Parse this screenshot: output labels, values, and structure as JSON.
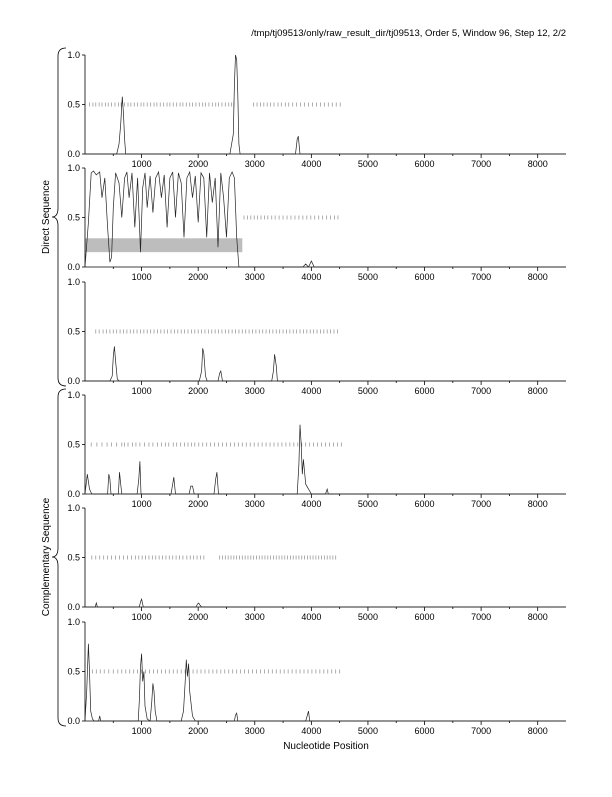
{
  "header": {
    "title": "/tmp/tj09513/only/raw_result_dir/tj09513, Order 5, Window 96, Step 12, 2/2"
  },
  "group_labels": {
    "direct": "Direct Sequence",
    "complementary": "Complementary Sequence"
  },
  "xlabel": "Nucleotide Position",
  "chart_data": [
    {
      "type": "line",
      "strand": "direct",
      "frame": 1,
      "xlim": [
        0,
        8500
      ],
      "ylim": [
        0,
        1.0
      ],
      "xticks": [
        1000,
        2000,
        3000,
        4000,
        5000,
        6000,
        7000,
        8000
      ],
      "yticks": [
        0.0,
        0.5,
        1.0
      ],
      "grid": false,
      "x": [
        0,
        560,
        600,
        630,
        650,
        660,
        680,
        700,
        720,
        2560,
        2620,
        2640,
        2660,
        2680,
        2700,
        2720,
        2740,
        3720,
        3750,
        3770,
        3800,
        8500
      ],
      "y": [
        0,
        0,
        0.1,
        0.3,
        0.5,
        0.58,
        0.4,
        0.15,
        0,
        0,
        0.2,
        0.7,
        1.0,
        0.95,
        0.6,
        0.1,
        0,
        0,
        0.15,
        0.18,
        0,
        0
      ],
      "stop_codons": [
        80,
        140,
        190,
        250,
        300,
        360,
        410,
        470,
        530,
        590,
        640,
        700,
        760,
        810,
        870,
        930,
        990,
        1040,
        1100,
        1160,
        1220,
        1270,
        1330,
        1390,
        1450,
        1500,
        1560,
        1620,
        1680,
        1730,
        1790,
        1850,
        1900,
        1960,
        2020,
        2080,
        2130,
        2190,
        2250,
        2310,
        2360,
        2420,
        2480,
        2540,
        2590,
        2630,
        2980,
        3040,
        3100,
        3160,
        3220,
        3280,
        3340,
        3410,
        3470,
        3540,
        3600,
        3670,
        3740,
        3810,
        3880,
        3950,
        4020,
        4090,
        4160,
        4230,
        4300,
        4370,
        4440,
        4510
      ],
      "stop_level": 0.5,
      "highlight": null
    },
    {
      "type": "line",
      "strand": "direct",
      "frame": 2,
      "xlim": [
        0,
        8500
      ],
      "ylim": [
        0,
        1.0
      ],
      "xticks": [
        1000,
        2000,
        3000,
        4000,
        5000,
        6000,
        7000,
        8000
      ],
      "yticks": [
        0.0,
        0.5,
        1.0
      ],
      "grid": false,
      "x": [
        0,
        60,
        110,
        150,
        200,
        260,
        300,
        350,
        400,
        440,
        470,
        500,
        540,
        600,
        650,
        700,
        740,
        780,
        830,
        880,
        930,
        980,
        1020,
        1060,
        1100,
        1150,
        1200,
        1250,
        1300,
        1350,
        1400,
        1450,
        1500,
        1550,
        1600,
        1650,
        1700,
        1750,
        1800,
        1850,
        1900,
        1950,
        2000,
        2050,
        2100,
        2150,
        2200,
        2250,
        2300,
        2350,
        2400,
        2450,
        2500,
        2550,
        2600,
        2640,
        2680,
        2720,
        2760,
        3850,
        3900,
        3950,
        4000,
        4050,
        8500
      ],
      "y": [
        0,
        0.45,
        0.95,
        0.97,
        0.93,
        0.96,
        0.7,
        0.9,
        0.4,
        0.05,
        0.1,
        0.6,
        0.95,
        0.85,
        0.5,
        0.9,
        0.96,
        0.7,
        0.95,
        0.4,
        0.9,
        0.15,
        0.8,
        0.95,
        0.6,
        0.92,
        0.55,
        0.9,
        0.96,
        0.7,
        0.93,
        0.4,
        0.9,
        0.96,
        0.5,
        0.95,
        0.85,
        0.3,
        0.9,
        0.96,
        0.7,
        0.92,
        0.45,
        0.95,
        0.9,
        0.3,
        0.95,
        0.65,
        0.9,
        0.2,
        0.95,
        0.7,
        0.3,
        0.9,
        0.96,
        0.9,
        0.3,
        0.0,
        0,
        0,
        0.03,
        0.0,
        0.06,
        0,
        0
      ],
      "stop_codons": [
        2810,
        2870,
        2930,
        2990,
        3050,
        3110,
        3170,
        3230,
        3300,
        3360,
        3430,
        3500,
        3570,
        3640,
        3710,
        3780,
        3850,
        3920,
        3990,
        4060,
        4130,
        4200,
        4270,
        4340,
        4410,
        4470
      ],
      "stop_level": 0.5,
      "highlight": {
        "x0": 0,
        "x1": 2780,
        "y0": 0.15,
        "y1": 0.29
      }
    },
    {
      "type": "line",
      "strand": "direct",
      "frame": 3,
      "xlim": [
        0,
        8500
      ],
      "ylim": [
        0,
        1.0
      ],
      "xticks": [
        1000,
        2000,
        3000,
        4000,
        5000,
        6000,
        7000,
        8000
      ],
      "yticks": [
        0.0,
        0.5,
        1.0
      ],
      "grid": false,
      "x": [
        0,
        440,
        480,
        500,
        520,
        540,
        570,
        600,
        2020,
        2060,
        2080,
        2100,
        2130,
        2160,
        2350,
        2380,
        2400,
        2430,
        3300,
        3330,
        3350,
        3380,
        3400,
        8500
      ],
      "y": [
        0,
        0,
        0.05,
        0.25,
        0.35,
        0.2,
        0.02,
        0,
        0,
        0.1,
        0.33,
        0.28,
        0.05,
        0,
        0,
        0.08,
        0.1,
        0,
        0,
        0.1,
        0.27,
        0.15,
        0,
        0
      ],
      "stop_codons": [
        190,
        250,
        320,
        380,
        440,
        500,
        560,
        620,
        680,
        740,
        800,
        860,
        920,
        980,
        1040,
        1100,
        1160,
        1220,
        1280,
        1340,
        1400,
        1460,
        1520,
        1580,
        1640,
        1700,
        1760,
        1820,
        1880,
        1940,
        2000,
        2060,
        2120,
        2180,
        2240,
        2300,
        2360,
        2420,
        2480,
        2540,
        2600,
        2660,
        2720,
        2780,
        2840,
        2900,
        2960,
        3020,
        3080,
        3140,
        3200,
        3260,
        3320,
        3380,
        3440,
        3500,
        3560,
        3620,
        3680,
        3740,
        3800,
        3860,
        3920,
        3980,
        4040,
        4100,
        4160,
        4220,
        4280,
        4340,
        4400,
        4460
      ],
      "stop_level": 0.5,
      "highlight": null
    },
    {
      "type": "line",
      "strand": "complementary",
      "frame": 1,
      "xlim": [
        0,
        8500
      ],
      "ylim": [
        0,
        1.0
      ],
      "xticks": [
        1000,
        2000,
        3000,
        4000,
        5000,
        6000,
        7000,
        8000
      ],
      "yticks": [
        0.0,
        0.5,
        1.0
      ],
      "grid": false,
      "x": [
        0,
        40,
        80,
        120,
        400,
        420,
        440,
        460,
        590,
        610,
        630,
        650,
        920,
        950,
        970,
        990,
        1520,
        1550,
        1570,
        1600,
        1840,
        1870,
        1900,
        1930,
        2280,
        2310,
        2330,
        2360,
        3750,
        3780,
        3800,
        3820,
        3840,
        3860,
        3900,
        3950,
        4000,
        4250,
        4280,
        4300,
        8500
      ],
      "y": [
        0,
        0.2,
        0.05,
        0,
        0,
        0.2,
        0.15,
        0,
        0,
        0.22,
        0.1,
        0,
        0,
        0.15,
        0.33,
        0,
        0,
        0.1,
        0.17,
        0,
        0,
        0.08,
        0.08,
        0,
        0,
        0.15,
        0.22,
        0,
        0,
        0.3,
        0.7,
        0.5,
        0.2,
        0.35,
        0.1,
        0.05,
        0,
        0,
        0.05,
        0,
        0
      ],
      "stop_codons": [
        110,
        210,
        300,
        390,
        470,
        560,
        650,
        700,
        760,
        840,
        900,
        970,
        1050,
        1130,
        1200,
        1280,
        1350,
        1420,
        1480,
        1560,
        1620,
        1690,
        1760,
        1820,
        1880,
        1940,
        2010,
        2080,
        2150,
        2220,
        2290,
        2360,
        2430,
        2500,
        2570,
        2640,
        2710,
        2780,
        2850,
        2920,
        2990,
        3060,
        3130,
        3200,
        3270,
        3340,
        3410,
        3480,
        3550,
        3620,
        3690,
        3760,
        3830,
        3900,
        3970,
        4040,
        4110,
        4180,
        4250,
        4320,
        4390,
        4460,
        4530
      ],
      "stop_level": 0.5,
      "highlight": null
    },
    {
      "type": "line",
      "strand": "complementary",
      "frame": 2,
      "xlim": [
        0,
        8500
      ],
      "ylim": [
        0,
        1.0
      ],
      "xticks": [
        1000,
        2000,
        3000,
        4000,
        5000,
        6000,
        7000,
        8000
      ],
      "yticks": [
        0.0,
        0.5,
        1.0
      ],
      "grid": false,
      "x": [
        0,
        180,
        200,
        220,
        960,
        980,
        1000,
        1030,
        1960,
        1990,
        2010,
        2030,
        2060,
        8500
      ],
      "y": [
        0,
        0,
        0.04,
        0,
        0,
        0.05,
        0.08,
        0,
        0,
        0.03,
        0.04,
        0.02,
        0,
        0
      ],
      "stop_codons": [
        120,
        190,
        260,
        330,
        400,
        470,
        540,
        610,
        680,
        750,
        820,
        890,
        950,
        1010,
        1070,
        1130,
        1190,
        1250,
        1310,
        1370,
        1430,
        1490,
        1550,
        1610,
        1670,
        1730,
        1800,
        1860,
        1920,
        1980,
        2040,
        2100,
        2380,
        2430,
        2480,
        2530,
        2580,
        2630,
        2680,
        2730,
        2780,
        2830,
        2880,
        2930,
        2980,
        3030,
        3080,
        3130,
        3180,
        3230,
        3280,
        3330,
        3380,
        3430,
        3480,
        3530,
        3580,
        3630,
        3680,
        3730,
        3780,
        3830,
        3880,
        3930,
        3980,
        4030,
        4080,
        4130,
        4180,
        4230,
        4280,
        4330,
        4380,
        4430
      ],
      "stop_level": 0.5,
      "highlight": null
    },
    {
      "type": "line",
      "strand": "complementary",
      "frame": 3,
      "xlim": [
        0,
        8500
      ],
      "ylim": [
        0,
        1.0
      ],
      "xticks": [
        1000,
        2000,
        3000,
        4000,
        5000,
        6000,
        7000,
        8000
      ],
      "yticks": [
        0.0,
        0.5,
        1.0
      ],
      "grid": false,
      "x": [
        0,
        30,
        60,
        80,
        100,
        130,
        160,
        200,
        240,
        260,
        280,
        940,
        960,
        980,
        1000,
        1020,
        1040,
        1060,
        1100,
        1150,
        1180,
        1200,
        1220,
        1240,
        1270,
        1700,
        1740,
        1770,
        1790,
        1810,
        1830,
        1850,
        1870,
        1900,
        1950,
        2640,
        2660,
        2680,
        2700,
        3900,
        3930,
        3950,
        3970,
        8500
      ],
      "y": [
        0,
        0.3,
        0.78,
        0.5,
        0.1,
        0.02,
        0,
        0,
        0,
        0.05,
        0,
        0,
        0.2,
        0.55,
        0.68,
        0.4,
        0.5,
        0.15,
        0.02,
        0,
        0.2,
        0.38,
        0.3,
        0.1,
        0,
        0,
        0.1,
        0.4,
        0.62,
        0.45,
        0.58,
        0.3,
        0.2,
        0.05,
        0,
        0,
        0.06,
        0.08,
        0,
        0,
        0.06,
        0.1,
        0,
        0
      ],
      "stop_codons": [
        130,
        200,
        270,
        340,
        420,
        500,
        580,
        650,
        720,
        790,
        860,
        930,
        1000,
        1070,
        1140,
        1210,
        1280,
        1350,
        1420,
        1490,
        1560,
        1630,
        1700,
        1770,
        1840,
        1910,
        1980,
        2050,
        2120,
        2190,
        2260,
        2330,
        2400,
        2470,
        2540,
        2610,
        2680,
        2750,
        2820,
        2890,
        2960,
        3030,
        3100,
        3170,
        3240,
        3310,
        3380,
        3450,
        3520,
        3590,
        3660,
        3730,
        3800,
        3870,
        3940,
        4010,
        4080,
        4150,
        4220,
        4290,
        4360,
        4430,
        4500
      ],
      "stop_level": 0.5,
      "highlight": null
    }
  ]
}
